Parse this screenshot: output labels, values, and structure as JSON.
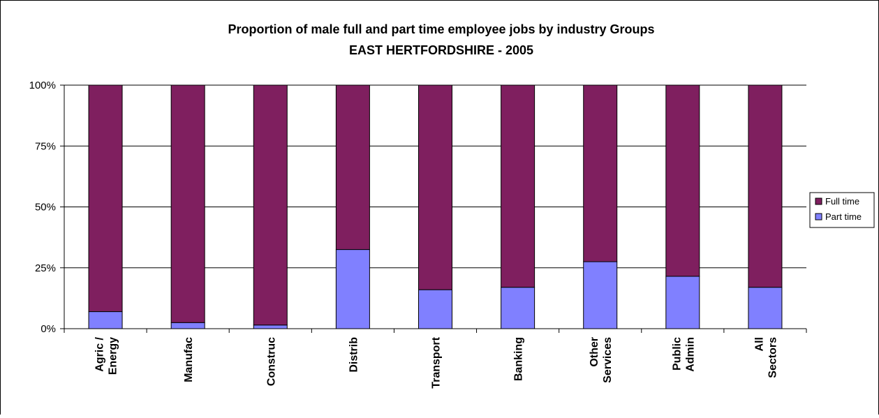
{
  "chart_data": {
    "type": "bar",
    "stacked": "percent",
    "title": "Proportion of male full and part time employee jobs by industry Groups",
    "subtitle": "EAST HERTFORDSHIRE - 2005",
    "xlabel": "",
    "ylabel": "",
    "ylim": [
      0,
      100
    ],
    "yticks": [
      "0%",
      "25%",
      "50%",
      "75%",
      "100%"
    ],
    "grid": true,
    "legend_position": "right",
    "categories": [
      [
        "Agric /",
        "Energy"
      ],
      [
        "Manufac"
      ],
      [
        "Construc"
      ],
      [
        "Distrib"
      ],
      [
        "Transport"
      ],
      [
        "Banking"
      ],
      [
        "Other",
        "Services"
      ],
      [
        "Public",
        "Admin"
      ],
      [
        "All",
        "Sectors"
      ]
    ],
    "series": [
      {
        "name": "Part time",
        "color": "#8080ff",
        "values": [
          7,
          2.5,
          1.5,
          32.5,
          16,
          17,
          27.5,
          21.5,
          17
        ]
      },
      {
        "name": "Full time",
        "color": "#7f1f5f",
        "values": [
          93,
          97.5,
          98.5,
          67.5,
          84,
          83,
          72.5,
          78.5,
          83
        ]
      }
    ],
    "legend_order": [
      "Full time",
      "Part time"
    ]
  }
}
